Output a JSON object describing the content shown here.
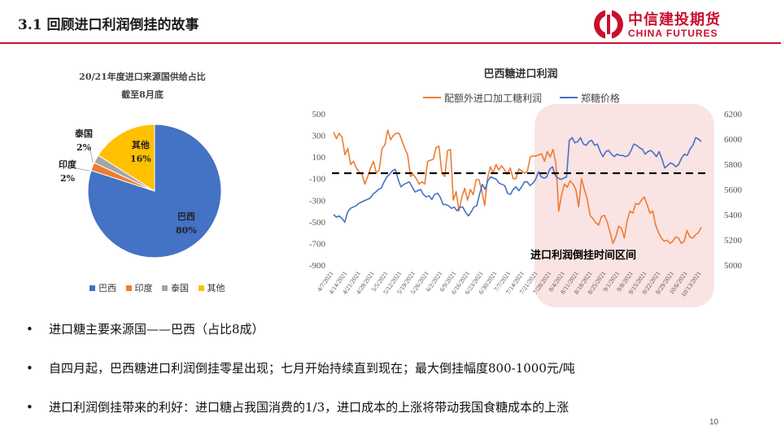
{
  "header": {
    "title": "3.1 回顾进口利润倒挂的故事",
    "logo_cn": "中信建投期货",
    "logo_en": "CHINA FUTURES",
    "accent": "#c8102e"
  },
  "pie": {
    "title_line1": "20/21年度进口来源国供给占比",
    "title_line2": "截至8月底",
    "labels": {
      "brazil_name": "巴西",
      "brazil_pct": "80%",
      "india_name": "印度",
      "india_pct": "2%",
      "thailand_name": "泰国",
      "thailand_pct": "2%",
      "other_name": "其他",
      "other_pct": "16%"
    },
    "legend": [
      "巴西",
      "印度",
      "泰国",
      "其他"
    ]
  },
  "line": {
    "title": "巴西糖进口利润",
    "legend": [
      "配额外进口加工糖利润",
      "郑糖价格"
    ],
    "annotation": "进口利润倒挂时间区间",
    "left_ticks": [
      "500",
      "300",
      "100",
      "-100",
      "-300",
      "-500",
      "-700",
      "-900"
    ],
    "right_ticks": [
      "6200",
      "6000",
      "5800",
      "5600",
      "5400",
      "5200",
      "5000"
    ],
    "x_ticks": [
      "4/7/2021",
      "4/14/2021",
      "4/21/2021",
      "4/28/2021",
      "5/5/2021",
      "5/12/2021",
      "5/19/2021",
      "5/26/2021",
      "6/2/2021",
      "6/9/2021",
      "6/16/2021",
      "6/23/2021",
      "6/30/2021",
      "7/7/2021",
      "7/14/2021",
      "7/21/2021",
      "7/28/2021",
      "8/4/2021",
      "8/11/2021",
      "8/18/2021",
      "8/25/2021",
      "9/1/2021",
      "9/8/2021",
      "9/15/2021",
      "9/22/2021",
      "9/29/2021",
      "10/6/2021",
      "10/13/2021"
    ]
  },
  "chart_data": [
    {
      "type": "pie",
      "title": "20/21年度进口来源国供给占比 截至8月底",
      "categories": [
        "巴西",
        "印度",
        "泰国",
        "其他"
      ],
      "values": [
        80,
        2,
        2,
        16
      ],
      "colors": [
        "#4472c4",
        "#ed7d31",
        "#a5a5a5",
        "#ffc000"
      ],
      "legend_position": "bottom"
    },
    {
      "type": "line",
      "title": "巴西糖进口利润",
      "x_range": [
        "4/7/2021",
        "10/13/2021"
      ],
      "y_left_lim": [
        -900,
        500
      ],
      "y_right_lim": [
        5000,
        6200
      ],
      "reference_line_left_axis": -50,
      "shaded_period": [
        "7/21/2021",
        "10/13/2021"
      ],
      "legend_position": "top",
      "series": [
        {
          "name": "配额外进口加工糖利润",
          "axis": "left",
          "color": "#ed7d31",
          "values": [
            330,
            270,
            320,
            280,
            120,
            180,
            30,
            60,
            0,
            -40,
            -60,
            -150,
            -80,
            0,
            60,
            -50,
            -20,
            180,
            210,
            350,
            260,
            300,
            320,
            320,
            250,
            180,
            120,
            -80,
            -60,
            -100,
            -150,
            -130,
            -150,
            60,
            70,
            80,
            190,
            200,
            -50,
            -80,
            160,
            170,
            -300,
            -220,
            -400,
            -270,
            -190,
            -300,
            -200,
            -250,
            -110,
            -110,
            -210,
            -350,
            -100,
            10,
            -50,
            30,
            -20,
            20,
            -20,
            -60,
            0,
            -100,
            -100,
            -10,
            -30,
            -50,
            -30,
            100,
            110,
            110,
            120,
            130,
            60,
            150,
            100,
            170,
            40,
            -400,
            -250,
            -150,
            -180,
            -120,
            -150,
            -200,
            -360,
            -100,
            -200,
            -290,
            -440,
            -470,
            -510,
            -530,
            -450,
            -440,
            -500,
            -600,
            -700,
            -640,
            -540,
            -560,
            -650,
            -490,
            -400,
            -420,
            -330,
            -340,
            -300,
            -270,
            -340,
            -420,
            -400,
            -530,
            -600,
            -650,
            -680,
            -670,
            -700,
            -680,
            -640,
            -650,
            -700,
            -680,
            -580,
            -640,
            -650,
            -620,
            -600,
            -550
          ]
        },
        {
          "name": "郑糖价格",
          "axis": "right",
          "color": "#4472c4",
          "values": [
            5400,
            5380,
            5390,
            5370,
            5340,
            5420,
            5450,
            5460,
            5470,
            5490,
            5500,
            5510,
            5520,
            5530,
            5560,
            5580,
            5600,
            5610,
            5660,
            5700,
            5720,
            5750,
            5760,
            5680,
            5620,
            5640,
            5650,
            5660,
            5620,
            5580,
            5590,
            5600,
            5560,
            5540,
            5550,
            5520,
            5560,
            5570,
            5540,
            5480,
            5480,
            5470,
            5450,
            5460,
            5430,
            5460,
            5460,
            5420,
            5390,
            5420,
            5460,
            5470,
            5560,
            5640,
            5600,
            5670,
            5700,
            5690,
            5680,
            5650,
            5640,
            5630,
            5570,
            5560,
            5600,
            5620,
            5590,
            5620,
            5660,
            5660,
            5630,
            5650,
            5680,
            5740,
            5700,
            5690,
            5700,
            5760,
            5780,
            5710,
            5690,
            5680,
            5690,
            5700,
            5990,
            6010,
            5970,
            5980,
            6010,
            5960,
            5950,
            5980,
            5990,
            5950,
            5960,
            5900,
            5860,
            5900,
            5910,
            5880,
            5860,
            5880,
            5870,
            5870,
            5860,
            5870,
            5910,
            5960,
            5950,
            5930,
            5920,
            5880,
            5900,
            5910,
            5890,
            5860,
            5900,
            5840,
            5770,
            5790,
            5810,
            5800,
            5780,
            5800,
            5850,
            5880,
            5870,
            5920,
            5950,
            6010,
            6000,
            5980
          ]
        }
      ]
    }
  ],
  "bullets": [
    "进口糖主要来源国——巴西（占比8成）",
    "自四月起，巴西糖进口利润倒挂零星出现；七月开始持续直到现在；最大倒挂幅度800-1000元/吨",
    "进口利润倒挂带来的利好：进口糖占我国消费的1/3，进口成本的上涨将带动我国食糖成本的上涨"
  ],
  "bullet_symbol": "•",
  "page_number": "10"
}
